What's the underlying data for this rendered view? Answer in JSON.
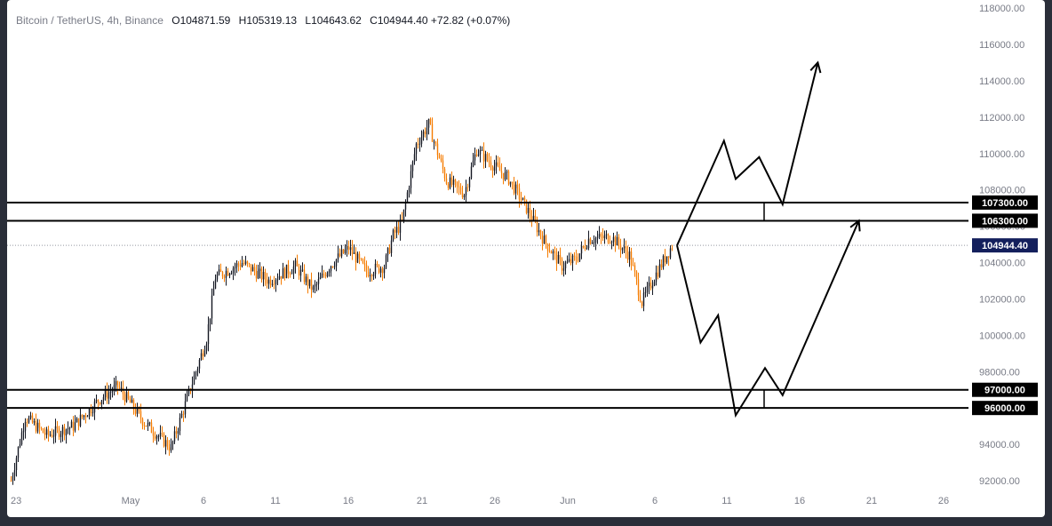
{
  "header": {
    "symbol": "Bitcoin / TetherUS, 4h, Binance",
    "open_label": "O",
    "open": "104871.59",
    "high_label": "H",
    "high": "105319.13",
    "low_label": "L",
    "low": "104643.62",
    "close_label": "C",
    "close": "104944.40",
    "change": "+72.82 (+0.07%)"
  },
  "colors": {
    "up": "#131722",
    "down": "#f57c00",
    "line": "#000000",
    "price_label_bg": "#131f5c",
    "axis_text": "#787b86"
  },
  "chart_data": {
    "type": "candlestick",
    "timeframe": "4h",
    "y_range": [
      91500,
      118000
    ],
    "y_ticks": [
      "92000.00",
      "94000.00",
      "96000.00",
      "98000.00",
      "100000.00",
      "102000.00",
      "104000.00",
      "106000.00",
      "108000.00",
      "110000.00",
      "112000.00",
      "114000.00",
      "116000.00",
      "118000.00"
    ],
    "x_ticks": [
      "23",
      "May",
      "6",
      "11",
      "16",
      "21",
      "26",
      "Jun",
      "6",
      "11",
      "16",
      "21",
      "26"
    ],
    "current_price": "104944.40",
    "levels": [
      {
        "price": 107300,
        "label": "107300.00"
      },
      {
        "price": 106300,
        "label": "106300.00"
      },
      {
        "price": 97000,
        "label": "97000.00"
      },
      {
        "price": 96000,
        "label": "96000.00"
      }
    ],
    "price_anchors": [
      [
        0,
        92000
      ],
      [
        8,
        95500
      ],
      [
        20,
        94500
      ],
      [
        35,
        95000
      ],
      [
        50,
        96500
      ],
      [
        60,
        97200
      ],
      [
        75,
        95200
      ],
      [
        90,
        93800
      ],
      [
        100,
        96800
      ],
      [
        110,
        99800
      ],
      [
        115,
        103200
      ],
      [
        130,
        104000
      ],
      [
        145,
        103000
      ],
      [
        160,
        103800
      ],
      [
        170,
        102500
      ],
      [
        180,
        103900
      ],
      [
        190,
        104800
      ],
      [
        200,
        103500
      ],
      [
        210,
        103800
      ],
      [
        215,
        105500
      ],
      [
        220,
        106200
      ],
      [
        228,
        110500
      ],
      [
        235,
        111600
      ],
      [
        245,
        108500
      ],
      [
        255,
        107800
      ],
      [
        262,
        110200
      ],
      [
        272,
        109300
      ],
      [
        280,
        108600
      ],
      [
        290,
        107000
      ],
      [
        300,
        105200
      ],
      [
        310,
        103800
      ],
      [
        318,
        104200
      ],
      [
        325,
        105300
      ],
      [
        338,
        105400
      ],
      [
        348,
        104400
      ],
      [
        355,
        101800
      ],
      [
        362,
        103200
      ],
      [
        372,
        104944
      ]
    ],
    "candle_count": 373,
    "projection_up": {
      "points": [
        [
          104944,
          0
        ],
        [
          110700,
          8
        ],
        [
          108600,
          10
        ],
        [
          109800,
          14
        ],
        [
          107200,
          18
        ],
        [
          115000,
          24
        ]
      ],
      "arrow": "up"
    },
    "projection_down": {
      "points": [
        [
          104944,
          0
        ],
        [
          99600,
          4
        ],
        [
          101100,
          7
        ],
        [
          95600,
          10
        ],
        [
          98200,
          15
        ],
        [
          96700,
          18
        ],
        [
          106300,
          31
        ]
      ],
      "arrow": "up"
    }
  }
}
